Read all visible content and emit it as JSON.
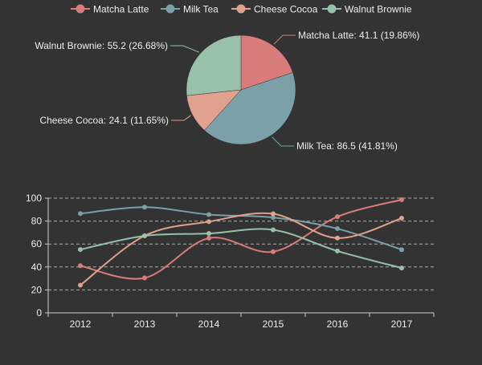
{
  "chart_data": [
    {
      "type": "pie",
      "legend_position": "top-center",
      "slices": [
        {
          "name": "Matcha Latte",
          "value": 41.1,
          "label": "Matcha Latte: 41.1 (19.86%)"
        },
        {
          "name": "Milk Tea",
          "value": 86.5,
          "label": "Milk Tea: 86.5 (41.81%)"
        },
        {
          "name": "Cheese Cocoa",
          "value": 24.1,
          "label": "Cheese Cocoa: 24.1 (11.65%)"
        },
        {
          "name": "Walnut Brownie",
          "value": 55.2,
          "label": "Walnut Brownie: 55.2 (26.68%)"
        }
      ]
    },
    {
      "type": "line",
      "smooth": true,
      "grid": "horizontal-dashed",
      "categories": [
        "2012",
        "2013",
        "2014",
        "2015",
        "2016",
        "2017"
      ],
      "ylim": [
        0,
        100
      ],
      "yticks": [
        0,
        20,
        40,
        60,
        80,
        100
      ],
      "series": [
        {
          "name": "Matcha Latte",
          "values": [
            41.1,
            30.4,
            65.1,
            53.3,
            83.8,
            98.7
          ]
        },
        {
          "name": "Milk Tea",
          "values": [
            86.5,
            92.1,
            85.7,
            83.1,
            73.4,
            55.1
          ]
        },
        {
          "name": "Cheese Cocoa",
          "values": [
            24.1,
            67.2,
            79.5,
            86.4,
            65.2,
            82.5
          ]
        },
        {
          "name": "Walnut Brownie",
          "values": [
            55.2,
            67.1,
            69.2,
            72.4,
            53.9,
            39.1
          ]
        }
      ]
    }
  ],
  "colors": {
    "Matcha Latte": "#d87c7c",
    "Milk Tea": "#7ba0a8",
    "Cheese Cocoa": "#e0a18e",
    "Walnut Brownie": "#98c0aa",
    "background": "#333333",
    "text": "#eeeeee",
    "axis": "#cccccc",
    "grid": "#aaaaaa"
  }
}
